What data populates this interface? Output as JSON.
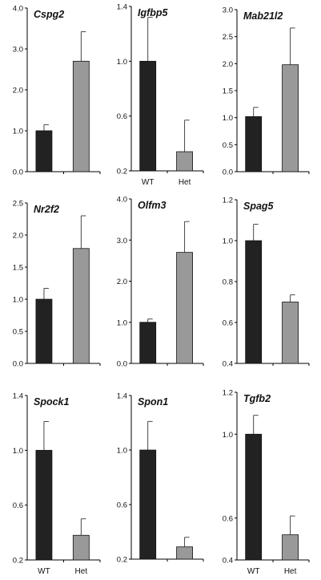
{
  "chart_data": [
    {
      "type": "bar",
      "title": "Cspg2",
      "categories": [
        "WT",
        "Het"
      ],
      "values": [
        1.0,
        2.7
      ],
      "errors": [
        0.15,
        0.72
      ],
      "ylim": [
        0.0,
        4.0
      ],
      "yticks": [
        "0.0",
        "1.0",
        "2.0",
        "3.0",
        "4.0"
      ],
      "show_x_labels": false
    },
    {
      "type": "bar",
      "title": "Igfbp5",
      "categories": [
        "WT",
        "Het"
      ],
      "values": [
        1.0,
        0.34
      ],
      "errors": [
        0.32,
        0.23
      ],
      "ylim": [
        0.2,
        1.4
      ],
      "yticks": [
        "0.2",
        "0.6",
        "1.0",
        "1.4"
      ],
      "show_x_labels": true
    },
    {
      "type": "bar",
      "title": "Mab21l2",
      "categories": [
        "WT",
        "Het"
      ],
      "values": [
        1.02,
        1.98
      ],
      "errors": [
        0.17,
        0.68
      ],
      "ylim": [
        0.0,
        3.0
      ],
      "yticks": [
        "0.0",
        "0.5",
        "1.0",
        "1.5",
        "2.0",
        "2.5",
        "3.0"
      ],
      "show_x_labels": false
    },
    {
      "type": "bar",
      "title": "Nr2f2",
      "categories": [
        "WT",
        "Het"
      ],
      "values": [
        1.0,
        1.79
      ],
      "errors": [
        0.17,
        0.51
      ],
      "ylim": [
        0.0,
        2.5
      ],
      "yticks": [
        "0.0",
        "0.5",
        "1.0",
        "1.5",
        "2.0",
        "2.5"
      ],
      "show_x_labels": false
    },
    {
      "type": "bar",
      "title": "Olfm3",
      "categories": [
        "WT",
        "Het"
      ],
      "values": [
        1.0,
        2.7
      ],
      "errors": [
        0.08,
        0.75
      ],
      "ylim": [
        0.0,
        4.0
      ],
      "yticks": [
        "0.0",
        "1.0",
        "2.0",
        "3.0",
        "4.0"
      ],
      "show_x_labels": false
    },
    {
      "type": "bar",
      "title": "Spag5",
      "categories": [
        "WT",
        "Het"
      ],
      "values": [
        1.0,
        0.7
      ],
      "errors": [
        0.08,
        0.035
      ],
      "ylim": [
        0.4,
        1.2
      ],
      "yticks": [
        "0.4",
        "0.6",
        "0.8",
        "1.0",
        "1.2"
      ],
      "show_x_labels": false
    },
    {
      "type": "bar",
      "title": "Spock1",
      "categories": [
        "WT",
        "Het"
      ],
      "values": [
        1.0,
        0.38
      ],
      "errors": [
        0.21,
        0.12
      ],
      "ylim": [
        0.2,
        1.4
      ],
      "yticks": [
        "0.2",
        "0.6",
        "1.0",
        "1.4"
      ],
      "show_x_labels": true
    },
    {
      "type": "bar",
      "title": "Spon1",
      "categories": [
        "WT",
        "Het"
      ],
      "values": [
        1.0,
        0.29
      ],
      "errors": [
        0.21,
        0.07
      ],
      "ylim": [
        0.2,
        1.4
      ],
      "yticks": [
        "0.2",
        "0.6",
        "1.0",
        "1.4"
      ],
      "show_x_labels": false
    },
    {
      "type": "bar",
      "title": "Tgfb2",
      "categories": [
        "WT",
        "Het"
      ],
      "values": [
        1.0,
        0.52
      ],
      "errors": [
        0.09,
        0.09
      ],
      "ylim": [
        0.4,
        1.2
      ],
      "yticks": [
        "0.4",
        "0.6",
        "1.0",
        "1.2"
      ],
      "show_x_labels": true
    }
  ],
  "colors": {
    "wt_bar": "#222222",
    "het_bar": "#999999",
    "error_bar": "#333333",
    "axis": "#000000"
  }
}
